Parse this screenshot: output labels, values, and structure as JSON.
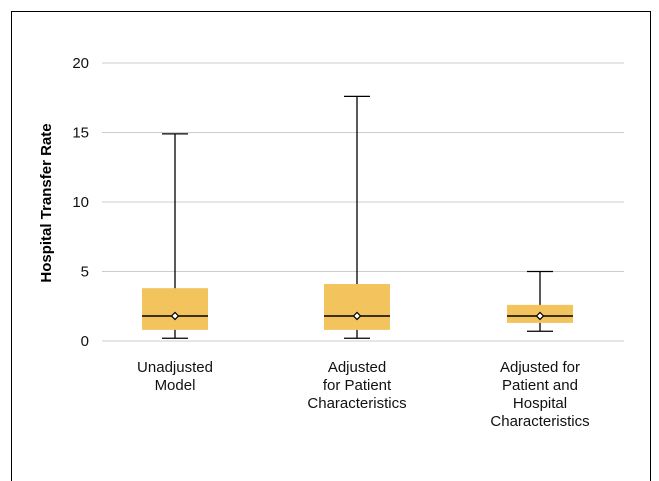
{
  "chart_data": {
    "type": "box",
    "title": "",
    "ylabel": "Hospital Transfer Rate",
    "xlabel": "",
    "ylim": [
      0,
      20
    ],
    "yticks": [
      0,
      5,
      10,
      15,
      20
    ],
    "grid": true,
    "categories": [
      [
        "Unadjusted",
        "Model"
      ],
      [
        "Adjusted",
        "for Patient",
        "Characteristics"
      ],
      [
        "Adjusted for",
        "Patient and",
        "Hospital",
        "Characteristics"
      ]
    ],
    "boxes": [
      {
        "min": 0.2,
        "q1": 0.8,
        "median": 1.8,
        "mean": 1.8,
        "q3": 3.8,
        "max": 14.9
      },
      {
        "min": 0.2,
        "q1": 0.8,
        "median": 1.8,
        "mean": 1.8,
        "q3": 4.1,
        "max": 17.6
      },
      {
        "min": 0.7,
        "q1": 1.3,
        "median": 1.8,
        "mean": 1.8,
        "q3": 2.6,
        "max": 5.0
      }
    ],
    "colors": {
      "box": "#f3c45e",
      "line": "#000000",
      "grid": "#cccccc"
    }
  }
}
